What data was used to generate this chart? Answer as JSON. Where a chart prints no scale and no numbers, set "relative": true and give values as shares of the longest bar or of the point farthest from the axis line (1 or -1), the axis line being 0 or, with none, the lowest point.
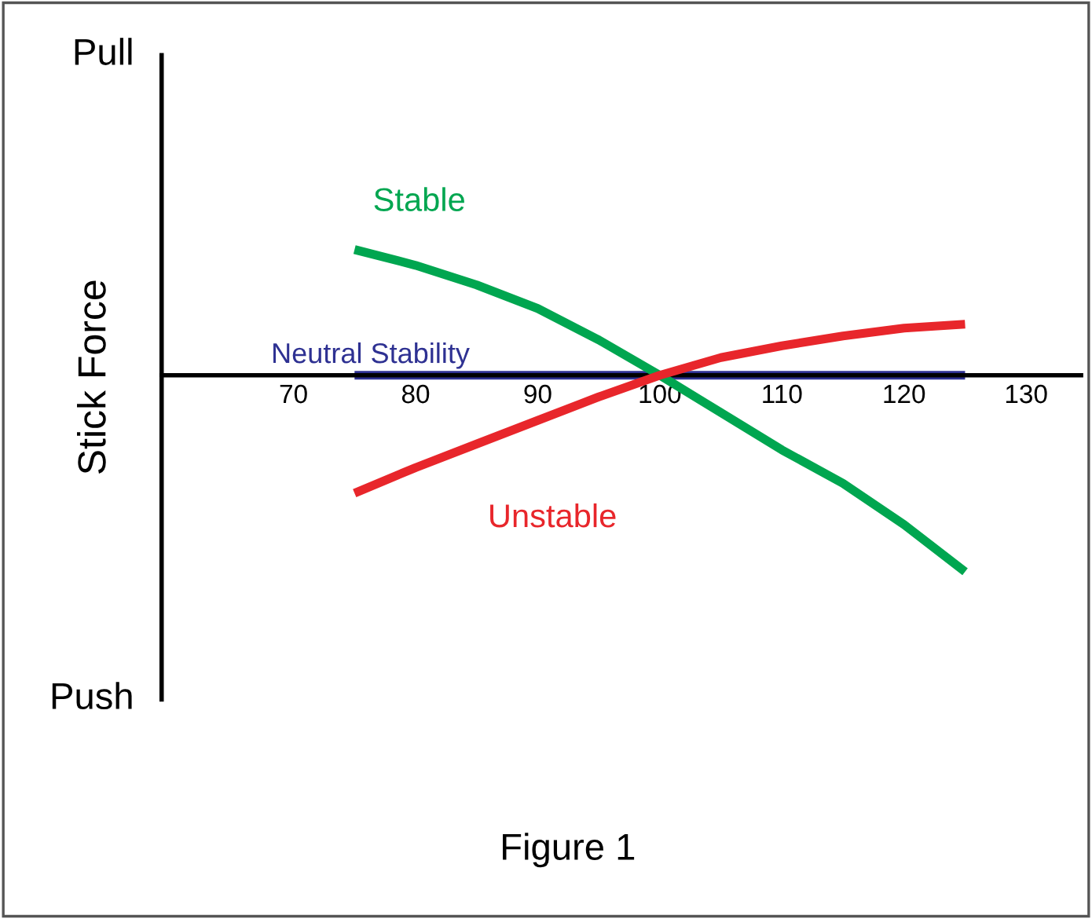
{
  "chart_data": {
    "type": "line",
    "relative": true,
    "ylabel": "Stick Force",
    "x": [
      75,
      80,
      85,
      90,
      95,
      100,
      105,
      110,
      115,
      120,
      125
    ],
    "xlim": [
      59.2,
      134.5
    ],
    "xticks": [
      70,
      80,
      90,
      100,
      110,
      120,
      130
    ],
    "series": [
      {
        "name": "Stable",
        "color": "#00a650",
        "values": [
          0.64,
          0.56,
          0.46,
          0.34,
          0.18,
          0,
          -0.19,
          -0.38,
          -0.55,
          -0.76,
          -1
        ]
      },
      {
        "name": "Unstable",
        "color": "#e8262b",
        "values": [
          -0.6,
          -0.47,
          -0.35,
          -0.23,
          -0.11,
          0,
          0.09,
          0.15,
          0.2,
          0.24,
          0.26
        ]
      },
      {
        "name": "Neutral Stability",
        "color": "#2e3192",
        "values": [
          0,
          0,
          0,
          0,
          0,
          0,
          0,
          0,
          0,
          0,
          0
        ]
      }
    ],
    "annotations": [
      "Pull",
      "Push",
      "Figure 1"
    ],
    "legend": false,
    "grid": false
  }
}
